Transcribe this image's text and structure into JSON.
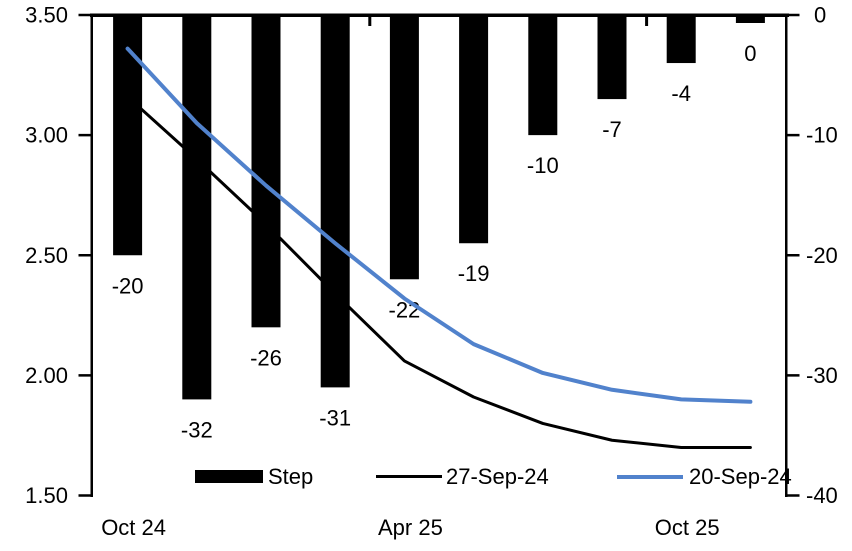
{
  "chart_data": {
    "type": "combo",
    "title": "",
    "n_categories": 10,
    "bar_series": {
      "name": "Step",
      "axis": "right",
      "color": "#000000",
      "values": [
        -20,
        -32,
        -26,
        -31,
        -22,
        -19,
        -10,
        -7,
        -4,
        0
      ],
      "data_labels": [
        "-20",
        "-32",
        "-26",
        "-31",
        "-22",
        "-19",
        "-10",
        "-7",
        "-4",
        "0"
      ]
    },
    "line_series": [
      {
        "name": "27-Sep-24",
        "axis": "left",
        "color": "#000000",
        "values": [
          3.16,
          2.9,
          2.63,
          2.34,
          2.06,
          1.91,
          1.8,
          1.73,
          1.7,
          1.7
        ]
      },
      {
        "name": "20-Sep-24",
        "axis": "left",
        "color": "#5182CC",
        "values": [
          3.36,
          3.05,
          2.79,
          2.55,
          2.32,
          2.13,
          2.01,
          1.94,
          1.9,
          1.89
        ]
      }
    ],
    "left_axis": {
      "min": 1.5,
      "max": 3.5,
      "tick_labels": [
        "3.50",
        "3.00",
        "2.50",
        "2.00",
        "1.50"
      ],
      "tick_values": [
        3.5,
        3.0,
        2.5,
        2.0,
        1.5
      ]
    },
    "right_axis": {
      "min": -40,
      "max": 0,
      "tick_labels": [
        "0",
        "-10",
        "-20",
        "-30",
        "-40"
      ],
      "tick_values": [
        0,
        -10,
        -20,
        -30,
        -40
      ]
    },
    "x_axis": {
      "labels": [
        "Oct 24",
        "Apr 25",
        "Oct 25"
      ],
      "label_category_index": [
        0,
        4,
        8
      ],
      "boundary_tick_after_category": [
        4,
        8
      ]
    },
    "legend": {
      "position": "bottom-inside",
      "entries": [
        {
          "label": "Step",
          "marker": "bar",
          "color": "#000000"
        },
        {
          "label": "27-Sep-24",
          "marker": "line",
          "color": "#000000"
        },
        {
          "label": "20-Sep-24",
          "marker": "line",
          "color": "#5182CC"
        }
      ]
    }
  }
}
